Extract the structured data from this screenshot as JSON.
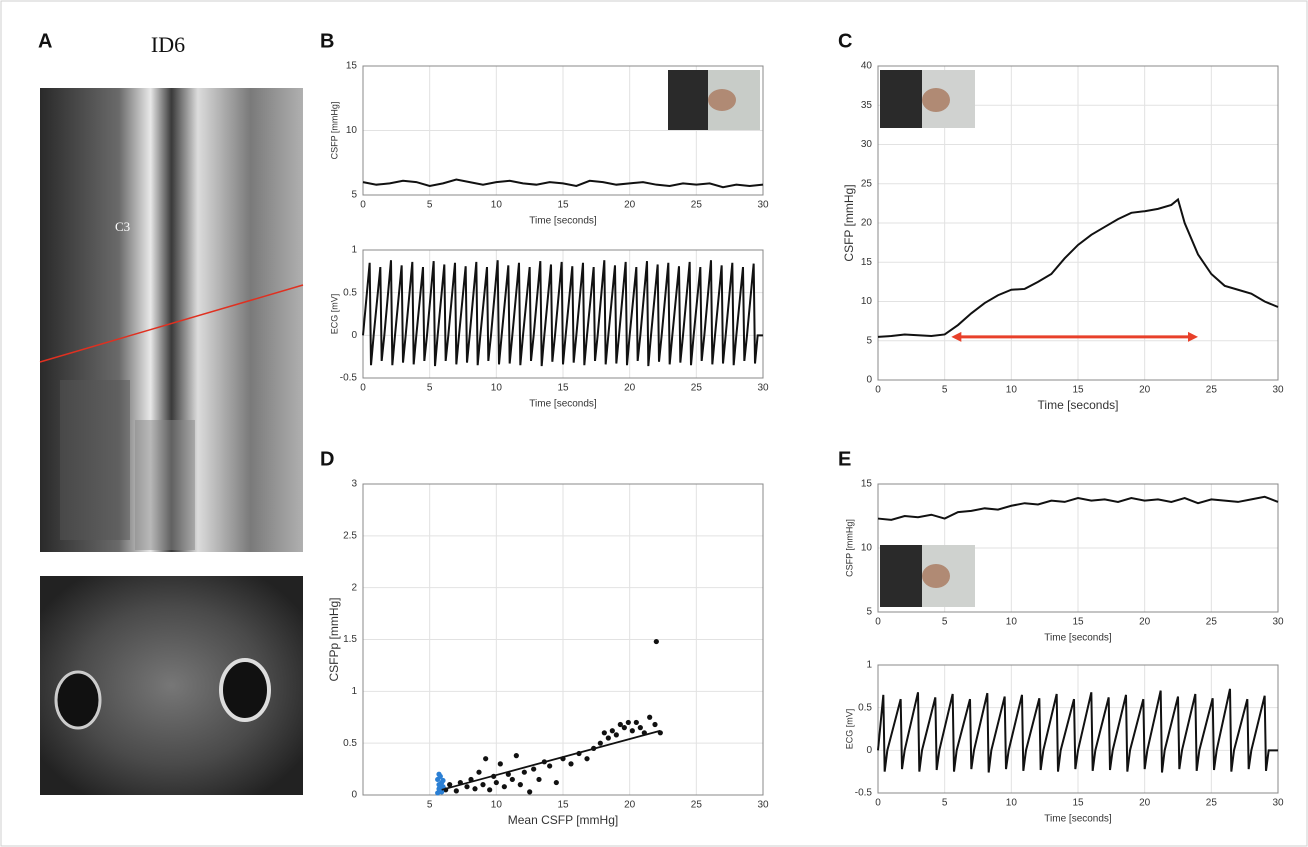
{
  "panel_labels": [
    "A",
    "B",
    "C",
    "D",
    "E"
  ],
  "mri": {
    "title": "ID6",
    "vertebra": "C3"
  },
  "chart_data": [
    {
      "type": "line",
      "xlabel": "Time [seconds]",
      "ylabel": "CSFP [mmHg]",
      "x": [
        0,
        1,
        2,
        3,
        4,
        5,
        6,
        7,
        8,
        9,
        10,
        11,
        12,
        13,
        14,
        15,
        16,
        17,
        18,
        19,
        20,
        21,
        22,
        23,
        24,
        25,
        26,
        27,
        28,
        29,
        30
      ],
      "series": [
        {
          "color": "#111111",
          "values": [
            6.0,
            5.8,
            5.9,
            6.1,
            6.0,
            5.7,
            5.9,
            6.2,
            6.0,
            5.8,
            6.0,
            6.1,
            5.9,
            5.8,
            6.0,
            5.9,
            5.7,
            6.1,
            6.0,
            5.8,
            5.9,
            6.0,
            5.8,
            5.7,
            5.9,
            5.8,
            5.9,
            5.6,
            5.8,
            5.7,
            5.8
          ]
        }
      ],
      "xlim": [
        0,
        30
      ],
      "xticks": [
        0,
        5,
        10,
        15,
        20,
        25,
        30
      ],
      "ylim": [
        5,
        15
      ],
      "yticks": [
        5,
        10,
        15
      ],
      "grid": true
    },
    {
      "type": "line",
      "xlabel": "Time [seconds]",
      "ylabel": "ECG [mV]",
      "x": [
        0,
        0.5,
        0.6,
        0.8,
        1.3,
        1.4,
        1.6,
        2.1,
        2.2,
        2.4,
        2.9,
        3.0,
        3.2,
        3.7,
        3.8,
        4.0,
        4.5,
        4.6,
        4.8,
        5.3,
        5.4,
        5.6,
        6.1,
        6.2,
        6.4,
        6.9,
        7.0,
        7.2,
        7.7,
        7.8,
        8.0,
        8.5,
        8.6,
        8.8,
        9.3,
        9.4,
        9.6,
        10.1,
        10.2,
        10.4,
        10.9,
        11.0,
        11.2,
        11.7,
        11.8,
        12.0,
        12.5,
        12.6,
        12.8,
        13.3,
        13.4,
        13.6,
        14.1,
        14.2,
        14.4,
        14.9,
        15.0,
        15.2,
        15.7,
        15.8,
        16.0,
        16.5,
        16.6,
        16.8,
        17.3,
        17.4,
        17.6,
        18.1,
        18.2,
        18.4,
        18.9,
        19.0,
        19.2,
        19.7,
        19.8,
        20.0,
        20.5,
        20.6,
        20.8,
        21.3,
        21.4,
        21.6,
        22.1,
        22.2,
        22.4,
        22.9,
        23.0,
        23.2,
        23.7,
        23.8,
        24.0,
        24.5,
        24.6,
        24.8,
        25.3,
        25.4,
        25.6,
        26.1,
        26.2,
        26.4,
        26.9,
        27.0,
        27.2,
        27.7,
        27.8,
        28.0,
        28.5,
        28.6,
        28.8,
        29.3,
        29.4,
        29.6,
        30
      ],
      "series": [
        {
          "color": "#111111",
          "values": [
            0,
            0.85,
            -0.35,
            0,
            0.8,
            -0.3,
            0,
            0.88,
            -0.35,
            0,
            0.82,
            -0.32,
            0,
            0.86,
            -0.34,
            0,
            0.8,
            -0.3,
            0,
            0.87,
            -0.36,
            0,
            0.83,
            -0.3,
            0,
            0.85,
            -0.34,
            0,
            0.81,
            -0.32,
            0,
            0.86,
            -0.35,
            0,
            0.8,
            -0.3,
            0,
            0.88,
            -0.34,
            0,
            0.82,
            -0.33,
            0,
            0.85,
            -0.35,
            0,
            0.8,
            -0.3,
            0,
            0.87,
            -0.36,
            0,
            0.83,
            -0.31,
            0,
            0.86,
            -0.34,
            0,
            0.81,
            -0.32,
            0,
            0.85,
            -0.35,
            0,
            0.8,
            -0.3,
            0,
            0.88,
            -0.34,
            0,
            0.82,
            -0.33,
            0,
            0.86,
            -0.35,
            0,
            0.8,
            -0.3,
            0,
            0.87,
            -0.36,
            0,
            0.83,
            -0.31,
            0,
            0.85,
            -0.34,
            0,
            0.81,
            -0.32,
            0,
            0.86,
            -0.35,
            0,
            0.8,
            -0.3,
            0,
            0.88,
            -0.34,
            0,
            0.82,
            -0.33,
            0,
            0.85,
            -0.35,
            0,
            0.8,
            -0.3,
            0,
            0.84,
            -0.33,
            0,
            0
          ]
        }
      ],
      "xlim": [
        0,
        30
      ],
      "xticks": [
        0,
        5,
        10,
        15,
        20,
        25,
        30
      ],
      "ylim": [
        -0.5,
        1
      ],
      "yticks": [
        -0.5,
        0,
        0.5,
        1
      ],
      "grid": true
    },
    {
      "type": "line",
      "xlabel": "Time [seconds]",
      "ylabel": "CSFP [mmHg]",
      "x": [
        0,
        1,
        2,
        3,
        4,
        5,
        6,
        7,
        8,
        9,
        10,
        11,
        12,
        13,
        14,
        15,
        16,
        17,
        18,
        19,
        20,
        21,
        22,
        22.5,
        23,
        24,
        25,
        26,
        27,
        28,
        29,
        30
      ],
      "series": [
        {
          "color": "#111111",
          "values": [
            5.5,
            5.6,
            5.8,
            5.7,
            5.6,
            5.8,
            7,
            8.5,
            9.8,
            10.8,
            11.5,
            11.6,
            12.5,
            13.5,
            15.5,
            17.2,
            18.5,
            19.5,
            20.5,
            21.3,
            21.5,
            21.8,
            22.3,
            23,
            20,
            16,
            13.5,
            12,
            11.5,
            11,
            10,
            9.3
          ]
        }
      ],
      "arrow": {
        "color": "#e8402a",
        "x": [
          5.5,
          24
        ],
        "y": 5.5
      },
      "xlim": [
        0,
        30
      ],
      "xticks": [
        0,
        5,
        10,
        15,
        20,
        25,
        30
      ],
      "ylim": [
        0,
        40
      ],
      "yticks": [
        0,
        5,
        10,
        15,
        20,
        25,
        30,
        35,
        40
      ],
      "grid": true
    },
    {
      "type": "scatter",
      "xlabel": "Mean CSFP [mmHg]",
      "ylabel": "CSFPp [mmHg]",
      "series": [
        {
          "color": "#111111",
          "x": [
            6.2,
            6.5,
            7,
            7.3,
            7.8,
            8.1,
            8.4,
            8.7,
            9,
            9.2,
            9.5,
            9.8,
            10,
            10.3,
            10.6,
            10.9,
            11.2,
            11.5,
            11.8,
            12.1,
            12.5,
            12.8,
            13.2,
            13.6,
            14,
            14.5,
            15,
            15.6,
            16.2,
            16.8,
            17.3,
            17.8,
            18.1,
            18.4,
            18.7,
            19,
            19.3,
            19.6,
            19.9,
            20.2,
            20.5,
            20.8,
            21.1,
            21.5,
            21.9,
            22,
            22.3
          ],
          "values": [
            0.05,
            0.1,
            0.04,
            0.12,
            0.08,
            0.15,
            0.06,
            0.22,
            0.1,
            0.35,
            0.05,
            0.18,
            0.12,
            0.3,
            0.08,
            0.2,
            0.15,
            0.38,
            0.1,
            0.22,
            0.03,
            0.25,
            0.15,
            0.32,
            0.28,
            0.12,
            0.35,
            0.3,
            0.4,
            0.35,
            0.45,
            0.5,
            0.6,
            0.55,
            0.62,
            0.58,
            0.68,
            0.65,
            0.7,
            0.62,
            0.7,
            0.65,
            0.6,
            0.75,
            0.68,
            1.48,
            0.6
          ]
        },
        {
          "color": "#2a7fd4",
          "x": [
            5.6,
            5.7,
            5.8,
            5.9,
            6.0,
            5.6,
            5.8,
            5.7,
            5.9,
            6.0,
            5.8,
            5.7
          ],
          "values": [
            0.15,
            0.1,
            0.05,
            0.12,
            0.08,
            0.02,
            0.18,
            0.06,
            0.03,
            0.14,
            0.1,
            0.2
          ]
        }
      ],
      "fit": {
        "color": "#111111",
        "x": [
          5.9,
          22.3
        ],
        "values": [
          0.05,
          0.62
        ]
      },
      "xlim": [
        0,
        30
      ],
      "xticks": [
        5,
        10,
        15,
        20,
        25,
        30
      ],
      "ylim": [
        0,
        3
      ],
      "yticks": [
        0,
        0.5,
        1,
        1.5,
        2,
        2.5,
        3
      ],
      "grid": true
    },
    {
      "type": "line",
      "xlabel": "Time [seconds]",
      "ylabel": "CSFP [mmHg]",
      "x": [
        0,
        1,
        2,
        3,
        4,
        5,
        6,
        7,
        8,
        9,
        10,
        11,
        12,
        13,
        14,
        15,
        16,
        17,
        18,
        19,
        20,
        21,
        22,
        23,
        24,
        25,
        26,
        27,
        28,
        29,
        30
      ],
      "series": [
        {
          "color": "#111111",
          "values": [
            12.3,
            12.2,
            12.5,
            12.4,
            12.6,
            12.3,
            12.8,
            12.9,
            13.1,
            13.0,
            13.3,
            13.5,
            13.4,
            13.7,
            13.6,
            13.9,
            13.7,
            13.8,
            13.6,
            13.9,
            13.7,
            13.8,
            13.6,
            13.9,
            13.5,
            13.8,
            13.7,
            13.6,
            13.8,
            14.0,
            13.6
          ]
        }
      ],
      "xlim": [
        0,
        30
      ],
      "xticks": [
        0,
        5,
        10,
        15,
        20,
        25,
        30
      ],
      "ylim": [
        5,
        15
      ],
      "yticks": [
        5,
        10,
        15
      ],
      "grid": true
    },
    {
      "type": "line",
      "xlabel": "Time [seconds]",
      "ylabel": "ECG [mV]",
      "x": [
        0,
        0.4,
        0.5,
        0.7,
        1.7,
        1.8,
        2.0,
        3.0,
        3.1,
        3.3,
        4.3,
        4.4,
        4.6,
        5.6,
        5.7,
        5.9,
        6.9,
        7.0,
        7.2,
        8.2,
        8.3,
        8.5,
        9.5,
        9.6,
        9.8,
        10.8,
        10.9,
        11.1,
        12.1,
        12.2,
        12.4,
        13.4,
        13.5,
        13.7,
        14.7,
        14.8,
        15.0,
        16.0,
        16.1,
        16.3,
        17.3,
        17.4,
        17.6,
        18.6,
        18.7,
        18.9,
        19.9,
        20.0,
        20.2,
        21.2,
        21.3,
        21.5,
        22.5,
        22.6,
        22.8,
        23.8,
        23.9,
        24.1,
        25.1,
        25.2,
        25.4,
        26.4,
        26.5,
        26.7,
        27.7,
        27.8,
        28.0,
        29.0,
        29.1,
        29.3,
        30
      ],
      "series": [
        {
          "color": "#111111",
          "values": [
            0,
            0.65,
            -0.25,
            0,
            0.6,
            -0.22,
            0,
            0.68,
            -0.25,
            0,
            0.62,
            -0.23,
            0,
            0.66,
            -0.25,
            0,
            0.6,
            -0.22,
            0,
            0.67,
            -0.26,
            0,
            0.63,
            -0.22,
            0,
            0.65,
            -0.24,
            0,
            0.61,
            -0.23,
            0,
            0.66,
            -0.25,
            0,
            0.6,
            -0.22,
            0,
            0.68,
            -0.24,
            0,
            0.62,
            -0.23,
            0,
            0.65,
            -0.25,
            0,
            0.6,
            -0.22,
            0,
            0.7,
            -0.26,
            0,
            0.63,
            -0.22,
            0,
            0.66,
            -0.24,
            0,
            0.61,
            -0.23,
            0,
            0.72,
            -0.25,
            0,
            0.6,
            -0.22,
            0,
            0.64,
            -0.24,
            0,
            0
          ]
        }
      ],
      "xlim": [
        0,
        30
      ],
      "xticks": [
        0,
        5,
        10,
        15,
        20,
        25,
        30
      ],
      "ylim": [
        -0.5,
        1
      ],
      "yticks": [
        -0.5,
        0,
        0.5,
        1
      ],
      "grid": true
    }
  ]
}
